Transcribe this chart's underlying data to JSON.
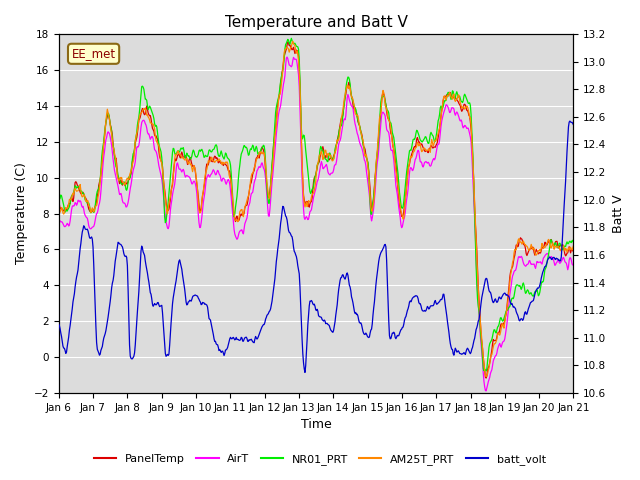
{
  "title": "Temperature and Batt V",
  "xlabel": "Time",
  "ylabel_left": "Temperature (C)",
  "ylabel_right": "Batt V",
  "annotation": "EE_met",
  "ylim_left": [
    -2,
    18
  ],
  "ylim_right": [
    10.6,
    13.2
  ],
  "x_tick_labels": [
    "Jan 6",
    "Jan 7",
    "Jan 8",
    "Jan 9",
    "Jan 10",
    "Jan 11",
    "Jan 12",
    "Jan 13",
    "Jan 14",
    "Jan 15",
    "Jan 16",
    "Jan 17",
    "Jan 18",
    "Jan 19",
    "Jan 20",
    "Jan 21"
  ],
  "bg_color": "#dcdcdc",
  "panel_color": "#dd0000",
  "air_color": "#ff00ff",
  "nr01_color": "#00ee00",
  "am25t_color": "#ff8800",
  "batt_color": "#0000cc",
  "legend_entries": [
    "PanelTemp",
    "AirT",
    "NR01_PRT",
    "AM25T_PRT",
    "batt_volt"
  ],
  "title_fontsize": 11,
  "tick_fontsize": 7.5,
  "label_fontsize": 9
}
